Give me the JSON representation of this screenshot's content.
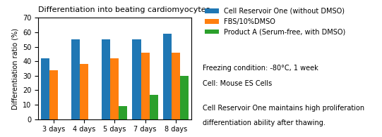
{
  "chart_data": {
    "type": "bar",
    "title": "Differentiation into beating cardiomyocytes",
    "y_label": "Differentiation ratio (%)",
    "categories": [
      "3 days",
      "4 days",
      "5 days",
      "7 days",
      "8 days"
    ],
    "series": [
      {
        "name": "Cell Reservoir One (without DMSO)",
        "values": [
          42,
          55,
          55,
          55,
          59
        ]
      },
      {
        "name": "FBS/10%DMSO",
        "values": [
          34,
          38,
          42,
          46,
          46
        ]
      },
      {
        "name": "Product A (Serum-free, with DMSO)",
        "values": [
          0,
          0,
          9,
          17,
          30
        ]
      }
    ],
    "ylim": [
      0,
      70
    ],
    "yticks": [
      0,
      10,
      20,
      30,
      40,
      50,
      60,
      70
    ],
    "legend": "upper left",
    "annotations": [
      "Freezing condition: -80°C, 1 week",
      "Cell: Mouse ES Cells",
      "Cell Reservoir One maintains high proliferation",
      "differentiation ability after thawing."
    ]
  }
}
